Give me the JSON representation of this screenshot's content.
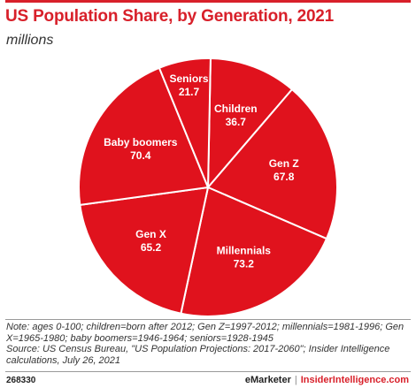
{
  "header": {
    "title": "US Population Share, by Generation, 2021",
    "subtitle": "millions"
  },
  "chart_data": {
    "type": "pie",
    "title": "US Population Share, by Generation, 2021",
    "subtitle": "millions",
    "slices": [
      {
        "label": "Children",
        "value": 36.7
      },
      {
        "label": "Gen Z",
        "value": 67.8
      },
      {
        "label": "Millennials",
        "value": 73.2
      },
      {
        "label": "Gen X",
        "value": 65.2
      },
      {
        "label": "Baby boomers",
        "value": 70.4
      },
      {
        "label": "Seniors",
        "value": 21.7
      }
    ],
    "slice_color": "#e0121d",
    "border_color": "#ffffff",
    "label_color": "#ffffff"
  },
  "notes": {
    "line1": "Note: ages 0-100; children=born after 2012; Gen Z=1997-2012; millennials=1981-1996; Gen X=1965-1980; baby boomers=1946-1964; seniors=1928-1945",
    "line2": "Source: US Census Bureau, \"US Population Projections: 2017-2060\"; Insider Intelligence calculations, July 26, 2021"
  },
  "footer": {
    "chart_id": "268330",
    "brand": "eMarketer",
    "separator": "|",
    "site": "InsiderIntelligence.com"
  },
  "colors": {
    "brand_red": "#d8202a"
  }
}
